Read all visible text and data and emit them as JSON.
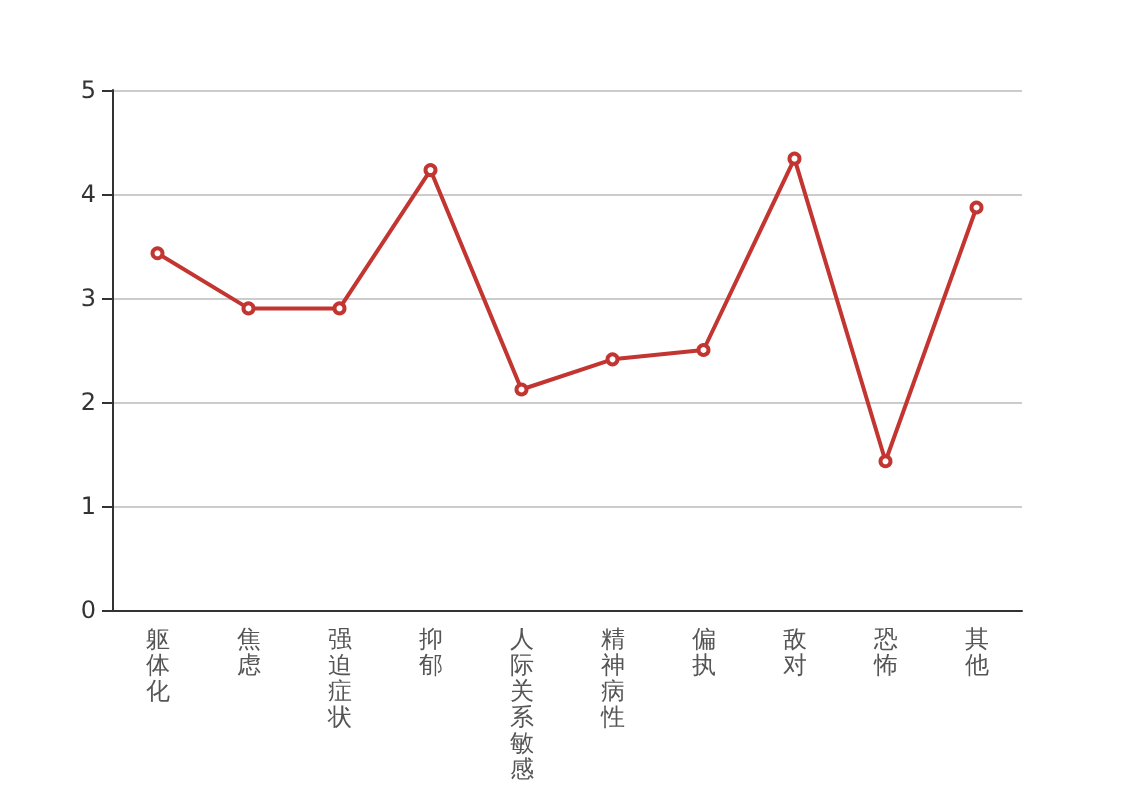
{
  "chart_data": {
    "type": "line",
    "categories": [
      "躯体化",
      "焦虑",
      "强迫症状",
      "抑郁",
      "人际关系敏感",
      "精神病性",
      "偏执",
      "敌对",
      "恐怖",
      "其他"
    ],
    "series": [
      {
        "color": "#c23531",
        "values": [
          3.43,
          2.9,
          2.9,
          4.23,
          2.12,
          2.41,
          2.5,
          4.34,
          1.43,
          3.87
        ]
      }
    ],
    "ylim": [
      0,
      5
    ],
    "yticks": [
      0,
      1,
      2,
      3,
      4,
      5
    ],
    "grid": "y",
    "marker": "circle",
    "line_style": "solid"
  }
}
